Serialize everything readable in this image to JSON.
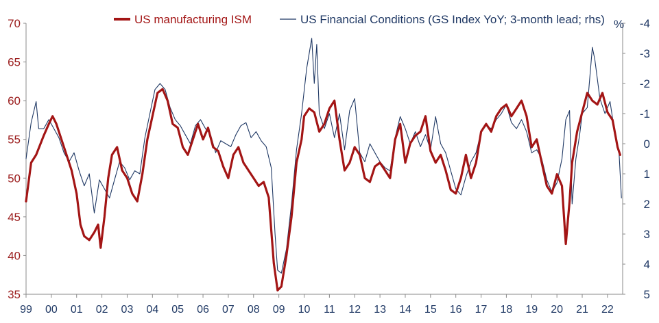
{
  "chart_data": {
    "type": "line",
    "title": "",
    "xlabel": "",
    "x_tick_labels": [
      "99",
      "00",
      "01",
      "02",
      "03",
      "04",
      "05",
      "06",
      "07",
      "08",
      "09",
      "10",
      "11",
      "12",
      "13",
      "14",
      "15",
      "16",
      "17",
      "18",
      "19",
      "20",
      "21",
      "22"
    ],
    "x_range": [
      1999.0,
      2022.6
    ],
    "y_left": {
      "ticks": [
        70,
        65,
        60,
        55,
        50,
        45,
        40,
        35
      ],
      "range": [
        35,
        70
      ],
      "color": "#9b1c1c"
    },
    "y_right": {
      "ticks": [
        -4,
        -3,
        -2,
        -1,
        0,
        1,
        2,
        3,
        4,
        5
      ],
      "range": [
        -4,
        5
      ],
      "inverted": true,
      "unit_label": "%",
      "color": "#1f3864"
    },
    "legend_placement": "top",
    "grid": false,
    "series": [
      {
        "name": "US manufacturing ISM",
        "axis": "left",
        "color": "#a31515",
        "points": [
          [
            1999.0,
            47.0
          ],
          [
            1999.2,
            52.0
          ],
          [
            1999.4,
            53.0
          ],
          [
            1999.7,
            55.5
          ],
          [
            1999.9,
            57.0
          ],
          [
            2000.05,
            58.0
          ],
          [
            2000.2,
            57.0
          ],
          [
            2000.4,
            55.0
          ],
          [
            2000.6,
            53.0
          ],
          [
            2000.8,
            51.0
          ],
          [
            2001.0,
            48.0
          ],
          [
            2001.15,
            44.0
          ],
          [
            2001.3,
            42.5
          ],
          [
            2001.5,
            42.0
          ],
          [
            2001.7,
            43.0
          ],
          [
            2001.85,
            44.0
          ],
          [
            2001.95,
            41.0
          ],
          [
            2002.1,
            45.0
          ],
          [
            2002.25,
            50.0
          ],
          [
            2002.4,
            53.0
          ],
          [
            2002.6,
            54.0
          ],
          [
            2002.8,
            51.0
          ],
          [
            2003.0,
            50.0
          ],
          [
            2003.2,
            48.0
          ],
          [
            2003.4,
            47.0
          ],
          [
            2003.6,
            50.5
          ],
          [
            2003.8,
            55.0
          ],
          [
            2004.0,
            58.0
          ],
          [
            2004.2,
            61.0
          ],
          [
            2004.4,
            61.5
          ],
          [
            2004.6,
            60.0
          ],
          [
            2004.8,
            57.0
          ],
          [
            2005.0,
            56.5
          ],
          [
            2005.2,
            54.0
          ],
          [
            2005.4,
            53.0
          ],
          [
            2005.6,
            55.0
          ],
          [
            2005.8,
            57.0
          ],
          [
            2006.0,
            55.0
          ],
          [
            2006.2,
            56.5
          ],
          [
            2006.4,
            54.0
          ],
          [
            2006.6,
            53.5
          ],
          [
            2006.8,
            51.5
          ],
          [
            2007.0,
            50.0
          ],
          [
            2007.2,
            53.0
          ],
          [
            2007.4,
            54.0
          ],
          [
            2007.6,
            52.0
          ],
          [
            2007.8,
            51.0
          ],
          [
            2008.0,
            50.0
          ],
          [
            2008.2,
            49.0
          ],
          [
            2008.4,
            49.5
          ],
          [
            2008.6,
            47.5
          ],
          [
            2008.8,
            39.0
          ],
          [
            2008.95,
            35.5
          ],
          [
            2009.1,
            36.0
          ],
          [
            2009.3,
            40.0
          ],
          [
            2009.5,
            45.0
          ],
          [
            2009.7,
            52.0
          ],
          [
            2009.9,
            55.0
          ],
          [
            2010.0,
            58.0
          ],
          [
            2010.2,
            59.0
          ],
          [
            2010.4,
            58.5
          ],
          [
            2010.6,
            56.0
          ],
          [
            2010.8,
            57.0
          ],
          [
            2011.0,
            59.0
          ],
          [
            2011.2,
            60.0
          ],
          [
            2011.4,
            55.0
          ],
          [
            2011.6,
            51.0
          ],
          [
            2011.8,
            52.0
          ],
          [
            2012.0,
            54.0
          ],
          [
            2012.2,
            53.0
          ],
          [
            2012.4,
            50.0
          ],
          [
            2012.6,
            49.5
          ],
          [
            2012.8,
            51.5
          ],
          [
            2013.0,
            52.0
          ],
          [
            2013.2,
            51.0
          ],
          [
            2013.4,
            50.0
          ],
          [
            2013.6,
            55.0
          ],
          [
            2013.8,
            57.0
          ],
          [
            2014.0,
            52.0
          ],
          [
            2014.2,
            54.5
          ],
          [
            2014.4,
            55.5
          ],
          [
            2014.6,
            56.0
          ],
          [
            2014.8,
            58.0
          ],
          [
            2015.0,
            53.5
          ],
          [
            2015.2,
            52.0
          ],
          [
            2015.4,
            53.0
          ],
          [
            2015.6,
            51.0
          ],
          [
            2015.8,
            48.5
          ],
          [
            2016.0,
            48.0
          ],
          [
            2016.2,
            50.0
          ],
          [
            2016.4,
            53.0
          ],
          [
            2016.6,
            50.0
          ],
          [
            2016.8,
            52.0
          ],
          [
            2017.0,
            56.0
          ],
          [
            2017.2,
            57.0
          ],
          [
            2017.4,
            56.0
          ],
          [
            2017.6,
            58.0
          ],
          [
            2017.8,
            59.0
          ],
          [
            2018.0,
            59.5
          ],
          [
            2018.2,
            58.0
          ],
          [
            2018.4,
            59.0
          ],
          [
            2018.6,
            60.0
          ],
          [
            2018.8,
            58.0
          ],
          [
            2019.0,
            54.0
          ],
          [
            2019.2,
            55.0
          ],
          [
            2019.4,
            52.0
          ],
          [
            2019.6,
            49.0
          ],
          [
            2019.8,
            48.0
          ],
          [
            2020.0,
            50.5
          ],
          [
            2020.2,
            49.0
          ],
          [
            2020.35,
            41.5
          ],
          [
            2020.5,
            47.0
          ],
          [
            2020.6,
            52.0
          ],
          [
            2020.8,
            56.0
          ],
          [
            2021.0,
            58.5
          ],
          [
            2021.2,
            61.0
          ],
          [
            2021.4,
            60.0
          ],
          [
            2021.6,
            59.5
          ],
          [
            2021.8,
            61.0
          ],
          [
            2022.0,
            58.5
          ],
          [
            2022.2,
            57.5
          ],
          [
            2022.4,
            54.0
          ],
          [
            2022.5,
            53.0
          ]
        ]
      },
      {
        "name": "US Financial Conditions (GS Index YoY; 3-month lead; rhs)",
        "axis": "right",
        "color": "#1f3864",
        "points": [
          [
            1999.0,
            0.5
          ],
          [
            1999.2,
            -0.7
          ],
          [
            1999.4,
            -1.4
          ],
          [
            1999.5,
            -0.5
          ],
          [
            1999.7,
            -0.5
          ],
          [
            1999.9,
            -0.8
          ],
          [
            2000.1,
            -0.5
          ],
          [
            2000.3,
            -0.2
          ],
          [
            2000.5,
            0.3
          ],
          [
            2000.7,
            0.6
          ],
          [
            2000.9,
            0.3
          ],
          [
            2001.1,
            0.9
          ],
          [
            2001.3,
            1.4
          ],
          [
            2001.5,
            1.0
          ],
          [
            2001.7,
            2.3
          ],
          [
            2001.9,
            1.2
          ],
          [
            2002.1,
            1.5
          ],
          [
            2002.3,
            1.8
          ],
          [
            2002.5,
            1.2
          ],
          [
            2002.7,
            0.6
          ],
          [
            2002.9,
            0.8
          ],
          [
            2003.1,
            1.2
          ],
          [
            2003.3,
            0.9
          ],
          [
            2003.5,
            1.0
          ],
          [
            2003.7,
            -0.2
          ],
          [
            2003.9,
            -1.0
          ],
          [
            2004.1,
            -1.8
          ],
          [
            2004.3,
            -2.0
          ],
          [
            2004.5,
            -1.8
          ],
          [
            2004.7,
            -1.2
          ],
          [
            2004.9,
            -0.8
          ],
          [
            2005.1,
            -0.6
          ],
          [
            2005.3,
            -0.3
          ],
          [
            2005.5,
            0.0
          ],
          [
            2005.7,
            -0.6
          ],
          [
            2005.9,
            -0.8
          ],
          [
            2006.1,
            -0.5
          ],
          [
            2006.3,
            -0.3
          ],
          [
            2006.5,
            0.3
          ],
          [
            2006.7,
            -0.1
          ],
          [
            2006.9,
            0.0
          ],
          [
            2007.1,
            0.1
          ],
          [
            2007.3,
            -0.3
          ],
          [
            2007.5,
            -0.6
          ],
          [
            2007.7,
            -0.7
          ],
          [
            2007.9,
            -0.2
          ],
          [
            2008.1,
            -0.4
          ],
          [
            2008.3,
            -0.1
          ],
          [
            2008.5,
            0.1
          ],
          [
            2008.7,
            0.8
          ],
          [
            2008.85,
            3.0
          ],
          [
            2008.95,
            4.2
          ],
          [
            2009.1,
            4.3
          ],
          [
            2009.3,
            3.5
          ],
          [
            2009.5,
            2.0
          ],
          [
            2009.7,
            0.2
          ],
          [
            2009.9,
            -1.0
          ],
          [
            2010.1,
            -2.5
          ],
          [
            2010.3,
            -3.5
          ],
          [
            2010.4,
            -2.0
          ],
          [
            2010.5,
            -3.3
          ],
          [
            2010.6,
            -1.0
          ],
          [
            2010.8,
            -0.5
          ],
          [
            2011.0,
            -1.0
          ],
          [
            2011.2,
            -0.2
          ],
          [
            2011.4,
            -1.0
          ],
          [
            2011.6,
            0.2
          ],
          [
            2011.8,
            -1.1
          ],
          [
            2012.0,
            -1.5
          ],
          [
            2012.2,
            0.3
          ],
          [
            2012.4,
            0.6
          ],
          [
            2012.6,
            0.0
          ],
          [
            2012.8,
            0.3
          ],
          [
            2013.0,
            0.6
          ],
          [
            2013.2,
            0.8
          ],
          [
            2013.4,
            0.9
          ],
          [
            2013.6,
            -0.2
          ],
          [
            2013.8,
            -0.9
          ],
          [
            2014.0,
            -0.5
          ],
          [
            2014.2,
            0.0
          ],
          [
            2014.4,
            -0.4
          ],
          [
            2014.6,
            0.1
          ],
          [
            2014.8,
            -0.3
          ],
          [
            2015.0,
            0.2
          ],
          [
            2015.2,
            -0.9
          ],
          [
            2015.4,
            0.0
          ],
          [
            2015.6,
            0.3
          ],
          [
            2015.8,
            0.9
          ],
          [
            2016.0,
            1.5
          ],
          [
            2016.2,
            1.7
          ],
          [
            2016.4,
            1.1
          ],
          [
            2016.6,
            0.6
          ],
          [
            2016.8,
            0.3
          ],
          [
            2017.0,
            -0.4
          ],
          [
            2017.2,
            -0.6
          ],
          [
            2017.4,
            -0.5
          ],
          [
            2017.6,
            -0.8
          ],
          [
            2017.8,
            -1.0
          ],
          [
            2018.0,
            -1.3
          ],
          [
            2018.2,
            -0.7
          ],
          [
            2018.4,
            -0.5
          ],
          [
            2018.6,
            -0.8
          ],
          [
            2018.8,
            -0.4
          ],
          [
            2019.0,
            0.3
          ],
          [
            2019.2,
            0.2
          ],
          [
            2019.4,
            0.5
          ],
          [
            2019.6,
            1.2
          ],
          [
            2019.8,
            1.6
          ],
          [
            2020.0,
            1.3
          ],
          [
            2020.2,
            0.5
          ],
          [
            2020.35,
            -0.8
          ],
          [
            2020.5,
            -1.1
          ],
          [
            2020.6,
            2.0
          ],
          [
            2020.75,
            0.5
          ],
          [
            2020.9,
            -0.3
          ],
          [
            2021.0,
            -1.0
          ],
          [
            2021.2,
            -1.2
          ],
          [
            2021.4,
            -3.2
          ],
          [
            2021.5,
            -2.8
          ],
          [
            2021.7,
            -1.5
          ],
          [
            2021.9,
            -1.0
          ],
          [
            2022.1,
            -1.4
          ],
          [
            2022.3,
            -0.3
          ],
          [
            2022.45,
            0.2
          ],
          [
            2022.55,
            1.8
          ]
        ]
      }
    ]
  }
}
